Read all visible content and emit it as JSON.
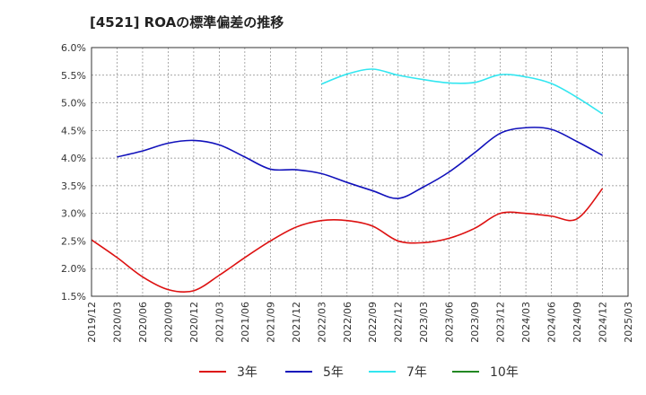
{
  "title": "[4521]  ROAの標準偏差の推移",
  "chart_data": {
    "type": "line",
    "title": "[4521]  ROAの標準偏差の推移",
    "xlabel": "",
    "ylabel": "",
    "x_ticks": [
      "2019/12",
      "2020/03",
      "2020/06",
      "2020/09",
      "2020/12",
      "2021/03",
      "2021/06",
      "2021/09",
      "2021/12",
      "2022/03",
      "2022/06",
      "2022/09",
      "2022/12",
      "2023/03",
      "2023/06",
      "2023/09",
      "2023/12",
      "2024/03",
      "2024/06",
      "2024/09",
      "2024/12",
      "2025/03"
    ],
    "y_ticks": [
      "1.5%",
      "2.0%",
      "2.5%",
      "3.0%",
      "3.5%",
      "4.0%",
      "4.5%",
      "5.0%",
      "5.5%",
      "6.0%"
    ],
    "ylim": [
      1.5,
      6.0
    ],
    "grid": true,
    "legend_position": "bottom",
    "series": [
      {
        "name": "3年",
        "color": "#dd1111",
        "x": [
          "2019/12",
          "2020/03",
          "2020/06",
          "2020/09",
          "2020/12",
          "2021/03",
          "2021/06",
          "2021/09",
          "2021/12",
          "2022/03",
          "2022/06",
          "2022/09",
          "2022/12",
          "2023/03",
          "2023/06",
          "2023/09",
          "2023/12",
          "2024/03",
          "2024/06",
          "2024/09",
          "2024/12"
        ],
        "values": [
          2.52,
          2.2,
          1.85,
          1.62,
          1.6,
          1.88,
          2.2,
          2.5,
          2.75,
          2.87,
          2.87,
          2.77,
          2.5,
          2.47,
          2.55,
          2.73,
          3.0,
          3.0,
          2.95,
          2.9,
          3.45
        ]
      },
      {
        "name": "5年",
        "color": "#1111bb",
        "x": [
          "2020/03",
          "2020/06",
          "2020/09",
          "2020/12",
          "2021/03",
          "2021/06",
          "2021/09",
          "2021/12",
          "2022/03",
          "2022/06",
          "2022/09",
          "2022/12",
          "2023/03",
          "2023/06",
          "2023/09",
          "2023/12",
          "2024/03",
          "2024/06",
          "2024/09",
          "2024/12"
        ],
        "values": [
          4.02,
          4.13,
          4.27,
          4.32,
          4.24,
          4.02,
          3.8,
          3.79,
          3.72,
          3.56,
          3.41,
          3.27,
          3.48,
          3.75,
          4.1,
          4.45,
          4.55,
          4.52,
          4.3,
          4.05
        ]
      },
      {
        "name": "7年",
        "color": "#33e6f0",
        "x": [
          "2022/03",
          "2022/06",
          "2022/09",
          "2022/12",
          "2023/03",
          "2023/06",
          "2023/09",
          "2023/12",
          "2024/03",
          "2024/06",
          "2024/09",
          "2024/12"
        ],
        "values": [
          5.34,
          5.52,
          5.61,
          5.5,
          5.42,
          5.36,
          5.37,
          5.51,
          5.47,
          5.35,
          5.1,
          4.8
        ]
      },
      {
        "name": "10年",
        "color": "#228822",
        "x": [],
        "values": []
      }
    ]
  }
}
